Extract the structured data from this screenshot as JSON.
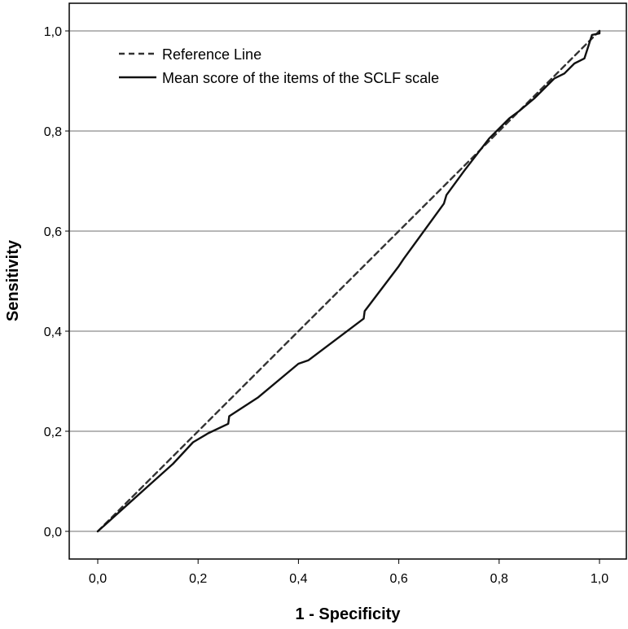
{
  "chart_data": {
    "type": "line",
    "title": "",
    "xlabel": "1 - Specificity",
    "ylabel": "Sensitivity",
    "xlim": [
      0,
      1
    ],
    "ylim": [
      0,
      1
    ],
    "x_ticks": [
      "0,0",
      "0,2",
      "0,4",
      "0,6",
      "0,8",
      "1,0"
    ],
    "y_ticks": [
      "0,0",
      "0,2",
      "0,4",
      "0,6",
      "0,8",
      "1,0"
    ],
    "grid": "horizontal",
    "legend_position": "top-left",
    "series": [
      {
        "name": "Reference Line",
        "style": "dashed",
        "color": "#333333",
        "points": [
          [
            0,
            0
          ],
          [
            1,
            1
          ]
        ]
      },
      {
        "name": "Mean score of the items of the SCLF scale",
        "style": "solid",
        "color": "#111111",
        "points": [
          [
            0.0,
            0.0
          ],
          [
            0.05,
            0.045
          ],
          [
            0.1,
            0.09
          ],
          [
            0.15,
            0.135
          ],
          [
            0.19,
            0.178
          ],
          [
            0.22,
            0.196
          ],
          [
            0.26,
            0.215
          ],
          [
            0.262,
            0.23
          ],
          [
            0.32,
            0.268
          ],
          [
            0.4,
            0.335
          ],
          [
            0.42,
            0.342
          ],
          [
            0.53,
            0.425
          ],
          [
            0.532,
            0.44
          ],
          [
            0.6,
            0.53
          ],
          [
            0.61,
            0.545
          ],
          [
            0.69,
            0.655
          ],
          [
            0.695,
            0.672
          ],
          [
            0.73,
            0.72
          ],
          [
            0.78,
            0.785
          ],
          [
            0.82,
            0.825
          ],
          [
            0.84,
            0.84
          ],
          [
            0.87,
            0.865
          ],
          [
            0.91,
            0.905
          ],
          [
            0.93,
            0.915
          ],
          [
            0.95,
            0.935
          ],
          [
            0.97,
            0.945
          ],
          [
            0.985,
            0.992
          ],
          [
            1.0,
            0.995
          ],
          [
            1.0,
            1.0
          ]
        ]
      }
    ]
  }
}
